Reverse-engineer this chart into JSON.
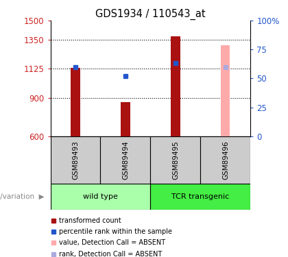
{
  "title": "GDS1934 / 110543_at",
  "samples": [
    "GSM89493",
    "GSM89494",
    "GSM89495",
    "GSM89496"
  ],
  "bar_values": [
    1130,
    865,
    1375,
    1310
  ],
  "bar_absent": [
    false,
    false,
    false,
    true
  ],
  "rank_values": [
    60,
    52,
    63,
    60
  ],
  "rank_absent": [
    false,
    false,
    false,
    true
  ],
  "ymin": 600,
  "ymax": 1500,
  "yticks": [
    600,
    900,
    1125,
    1350,
    1500
  ],
  "right_yticks": [
    0,
    25,
    50,
    75,
    100
  ],
  "right_yticklabels": [
    "0",
    "25",
    "50",
    "75",
    "100%"
  ],
  "groups": [
    {
      "label": "wild type",
      "indices": [
        0,
        1
      ]
    },
    {
      "label": "TCR transgenic",
      "indices": [
        2,
        3
      ]
    }
  ],
  "group_label": "genotype/variation",
  "bar_color_present": "#aa1111",
  "bar_color_absent": "#ffaaaa",
  "rank_color_present": "#2255cc",
  "rank_color_absent": "#aaaadd",
  "group_color_wt": "#aaffaa",
  "group_color_tcr": "#44ee44",
  "bg_color": "#ffffff",
  "left_tick_color": "#cc2222",
  "right_tick_color": "#2255cc",
  "sample_gray_bg": "#cccccc",
  "legend_items": [
    {
      "label": "transformed count",
      "color": "#aa1111"
    },
    {
      "label": "percentile rank within the sample",
      "color": "#2255cc"
    },
    {
      "label": "value, Detection Call = ABSENT",
      "color": "#ffaaaa"
    },
    {
      "label": "rank, Detection Call = ABSENT",
      "color": "#aaaadd"
    }
  ],
  "bar_width": 0.18
}
